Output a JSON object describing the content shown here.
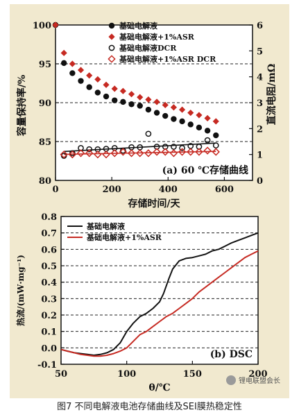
{
  "caption": "图7 不同电解液电池存储曲线及SEI膜热稳定性",
  "watermark": "锂电联盟会长",
  "colors": {
    "red": "#c62a22",
    "black": "#111111",
    "panel": "#f1e9cf"
  },
  "chart_data": [
    {
      "type": "scatter",
      "panel_label": "(a) 60 ℃存储曲线",
      "xlabel": "存储时间/天",
      "ylabel": "容量保持率/%",
      "ylabel_right": "直流电阻/mΩ",
      "xlim": [
        0,
        700
      ],
      "xticks": [
        0,
        200,
        400,
        600
      ],
      "ylim": [
        80,
        100
      ],
      "yticks": [
        80,
        85,
        90,
        95,
        100
      ],
      "ylim_right": [
        0,
        6
      ],
      "yticks_right": [
        0,
        1,
        2,
        3,
        4,
        5,
        6
      ],
      "grid": "horizontal-dashed",
      "legend_position": "top",
      "series": [
        {
          "name": "基础电解液",
          "axis": "left",
          "marker": "filled-circle",
          "color": "#111111",
          "x": [
            0,
            30,
            60,
            90,
            120,
            150,
            180,
            210,
            240,
            270,
            300,
            330,
            360,
            390,
            420,
            450,
            480,
            510,
            540,
            570
          ],
          "y": [
            100,
            95.1,
            93.8,
            92.8,
            92.0,
            91.3,
            90.8,
            90.3,
            90.1,
            89.8,
            89.6,
            89.1,
            88.7,
            88.3,
            87.9,
            87.6,
            87.2,
            86.8,
            86.4,
            85.8
          ]
        },
        {
          "name": "基础电解液+1%ASR",
          "axis": "left",
          "marker": "filled-diamond",
          "color": "#c62a22",
          "x": [
            0,
            30,
            60,
            90,
            120,
            150,
            180,
            210,
            240,
            270,
            300,
            330,
            360,
            390,
            420,
            450,
            480,
            510,
            540,
            570
          ],
          "y": [
            100,
            96.4,
            95.0,
            94.2,
            93.5,
            93.0,
            92.3,
            91.8,
            91.5,
            91.1,
            90.7,
            90.4,
            90.1,
            89.7,
            89.4,
            89.1,
            88.7,
            88.4,
            88.0,
            87.6
          ]
        },
        {
          "name": "基础电解液DCR",
          "axis": "right",
          "marker": "open-circle",
          "color": "#111111",
          "x": [
            30,
            60,
            90,
            120,
            150,
            180,
            210,
            240,
            270,
            300,
            330,
            360,
            390,
            420,
            450,
            480,
            510,
            540,
            570
          ],
          "y": [
            0.95,
            1.05,
            1.25,
            1.2,
            1.2,
            1.22,
            1.25,
            1.15,
            1.28,
            1.28,
            1.8,
            1.3,
            1.3,
            1.3,
            1.25,
            1.33,
            1.3,
            1.55,
            1.35
          ]
        },
        {
          "name": "基础电解液+1%ASR DCR",
          "axis": "right",
          "marker": "open-diamond",
          "color": "#c62a22",
          "x": [
            30,
            60,
            90,
            120,
            150,
            180,
            210,
            240,
            270,
            300,
            330,
            360,
            390,
            420,
            450,
            480,
            510,
            540,
            570
          ],
          "y": [
            1.0,
            1.0,
            1.05,
            1.05,
            1.0,
            1.0,
            1.05,
            1.1,
            1.05,
            1.05,
            1.05,
            1.1,
            1.1,
            1.05,
            1.1,
            1.1,
            1.1,
            1.15,
            1.1
          ]
        }
      ]
    },
    {
      "type": "line",
      "panel_label": "(b) DSC",
      "xlabel": "θ/℃",
      "ylabel": "热流/(mW·mg⁻¹)",
      "xlim": [
        50,
        200
      ],
      "xticks": [
        50,
        100,
        150,
        200
      ],
      "ylim": [
        -0.1,
        0.8
      ],
      "yticks": [
        -0.1,
        0.0,
        0.1,
        0.2,
        0.3,
        0.4,
        0.5,
        0.6,
        0.7,
        0.8
      ],
      "grid": "horizontal-dashed",
      "legend_position": "top-left",
      "series": [
        {
          "name": "基础电解液",
          "color": "#111111",
          "x": [
            50,
            55,
            60,
            65,
            70,
            75,
            80,
            85,
            90,
            95,
            100,
            105,
            110,
            115,
            120,
            125,
            128,
            132,
            135,
            140,
            145,
            150,
            155,
            160,
            165,
            170,
            175,
            180,
            185,
            190,
            195,
            200
          ],
          "y": [
            -0.01,
            -0.02,
            -0.03,
            -0.035,
            -0.04,
            -0.045,
            -0.04,
            -0.03,
            -0.01,
            0.03,
            0.1,
            0.15,
            0.19,
            0.21,
            0.24,
            0.28,
            0.33,
            0.42,
            0.48,
            0.53,
            0.545,
            0.55,
            0.56,
            0.57,
            0.59,
            0.6,
            0.62,
            0.64,
            0.655,
            0.67,
            0.685,
            0.7
          ]
        },
        {
          "name": "基础电解液+1%ASR",
          "color": "#c62a22",
          "x": [
            50,
            55,
            60,
            65,
            70,
            75,
            80,
            85,
            90,
            95,
            100,
            105,
            110,
            115,
            120,
            125,
            130,
            135,
            140,
            145,
            150,
            155,
            160,
            165,
            170,
            175,
            180,
            185,
            190,
            195,
            200
          ],
          "y": [
            -0.01,
            -0.02,
            -0.03,
            -0.04,
            -0.045,
            -0.05,
            -0.05,
            -0.045,
            -0.035,
            -0.02,
            0.0,
            0.04,
            0.08,
            0.1,
            0.13,
            0.16,
            0.19,
            0.21,
            0.24,
            0.27,
            0.3,
            0.34,
            0.37,
            0.4,
            0.43,
            0.46,
            0.49,
            0.52,
            0.55,
            0.57,
            0.59
          ]
        }
      ]
    }
  ]
}
